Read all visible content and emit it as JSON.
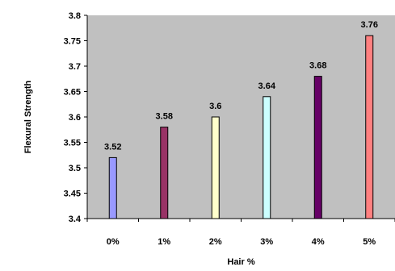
{
  "chart_data": {
    "type": "bar",
    "title": "",
    "xlabel": "Hair %",
    "ylabel": "Flexural Strength",
    "categories": [
      "0%",
      "1%",
      "2%",
      "3%",
      "4%",
      "5%"
    ],
    "values": [
      3.52,
      3.58,
      3.6,
      3.64,
      3.68,
      3.76
    ],
    "value_labels": [
      "3.52",
      "3.58",
      "3.6",
      "3.64",
      "3.68",
      "3.76"
    ],
    "ylim": [
      3.4,
      3.8
    ],
    "yticks": [
      "3.4",
      "3.45",
      "3.5",
      "3.55",
      "3.6",
      "3.65",
      "3.7",
      "3.75",
      "3.8"
    ],
    "grid": false,
    "plot_background": "#c0c0c0",
    "bar_colors": [
      "#9999ff",
      "#993366",
      "#ffffcc",
      "#ccffff",
      "#660066",
      "#ff8080"
    ]
  }
}
